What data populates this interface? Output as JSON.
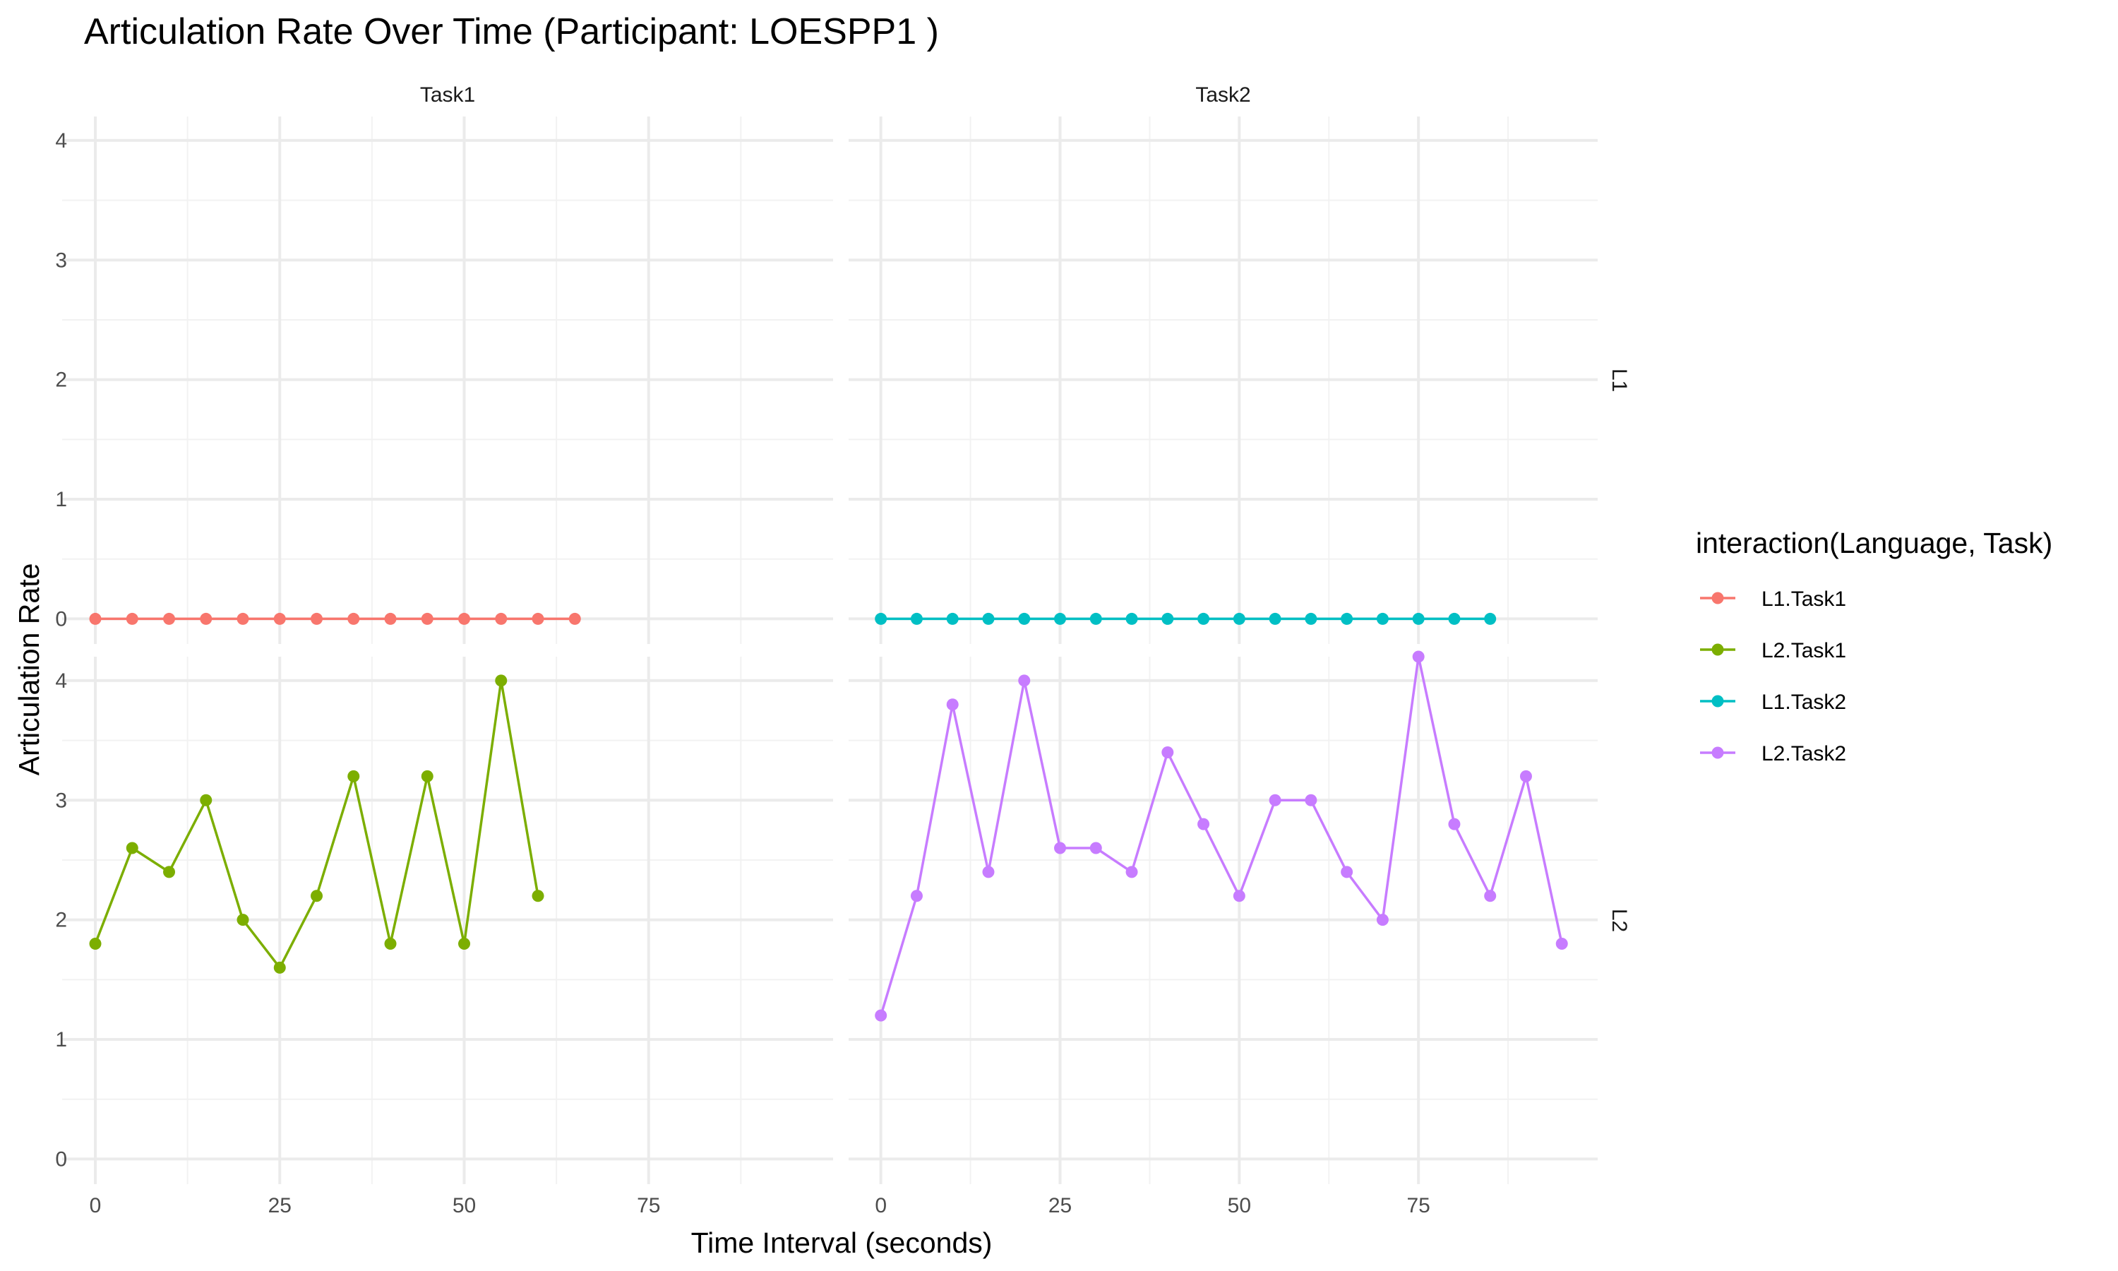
{
  "chart_data": {
    "type": "line",
    "title": "Articulation Rate Over Time (Participant: LOESPP1 )",
    "xlabel": "Time Interval (seconds)",
    "ylabel": "Articulation Rate",
    "legend_title": "interaction(Language, Task)",
    "legend_position": "right",
    "grid": true,
    "facet_cols": [
      "Task1",
      "Task2"
    ],
    "facet_rows": [
      "L1",
      "L2"
    ],
    "xlim": [
      -4.5,
      100
    ],
    "ylim": [
      -0.21,
      4.2
    ],
    "x_ticks": [
      "0",
      "25",
      "50",
      "75"
    ],
    "y_ticks": [
      "0",
      "1",
      "2",
      "3",
      "4"
    ],
    "series": [
      {
        "name": "L1.Task1",
        "color": "#F8766D",
        "row": "L1",
        "col": "Task1",
        "x": [
          0,
          5,
          10,
          15,
          20,
          25,
          30,
          35,
          40,
          45,
          50,
          55,
          60,
          65
        ],
        "values": [
          0,
          0,
          0,
          0,
          0,
          0,
          0,
          0,
          0,
          0,
          0,
          0,
          0,
          0
        ]
      },
      {
        "name": "L2.Task1",
        "color": "#7CAE00",
        "row": "L2",
        "col": "Task1",
        "x": [
          0,
          5,
          10,
          15,
          20,
          25,
          30,
          35,
          40,
          45,
          50,
          55,
          60
        ],
        "values": [
          1.8,
          2.6,
          2.4,
          3.0,
          2.0,
          1.6,
          2.2,
          3.2,
          1.8,
          3.2,
          1.8,
          4.0,
          2.2
        ]
      },
      {
        "name": "L1.Task2",
        "color": "#00BFC4",
        "row": "L1",
        "col": "Task2",
        "x": [
          0,
          5,
          10,
          15,
          20,
          25,
          30,
          35,
          40,
          45,
          50,
          55,
          60,
          65,
          70,
          75,
          80,
          85
        ],
        "values": [
          0,
          0,
          0,
          0,
          0,
          0,
          0,
          0,
          0,
          0,
          0,
          0,
          0,
          0,
          0,
          0,
          0,
          0
        ]
      },
      {
        "name": "L2.Task2",
        "color": "#C77CFF",
        "row": "L2",
        "col": "Task2",
        "x": [
          0,
          5,
          10,
          15,
          20,
          25,
          30,
          35,
          40,
          45,
          50,
          55,
          60,
          65,
          70,
          75,
          80,
          85,
          90,
          95
        ],
        "values": [
          1.2,
          2.2,
          3.8,
          2.4,
          4.0,
          2.6,
          2.6,
          2.4,
          3.4,
          2.8,
          2.2,
          3.0,
          3.0,
          2.4,
          2.0,
          4.2,
          2.8,
          2.2,
          3.2,
          1.8
        ]
      }
    ]
  }
}
